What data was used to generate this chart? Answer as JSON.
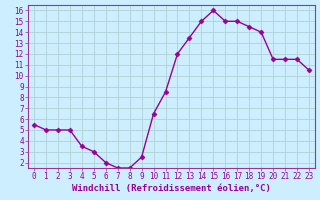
{
  "x": [
    0,
    1,
    2,
    3,
    4,
    5,
    6,
    7,
    8,
    9,
    10,
    11,
    12,
    13,
    14,
    15,
    16,
    17,
    18,
    19,
    20,
    21,
    22,
    23
  ],
  "y": [
    5.5,
    5.0,
    5.0,
    5.0,
    3.5,
    3.0,
    2.0,
    1.5,
    1.5,
    2.5,
    6.5,
    8.5,
    12.0,
    13.5,
    15.0,
    16.0,
    15.0,
    15.0,
    14.5,
    14.0,
    11.5,
    11.5,
    11.5,
    10.5
  ],
  "line_color": "#990099",
  "marker": "D",
  "markersize": 2.5,
  "linewidth": 1.0,
  "bg_color": "#cceeff",
  "grid_color": "#aacccc",
  "xlabel": "Windchill (Refroidissement éolien,°C)",
  "xlabel_color": "#990099",
  "xlabel_fontsize": 6.5,
  "tick_color": "#990099",
  "tick_fontsize": 5.5,
  "xlim": [
    -0.5,
    23.5
  ],
  "ylim": [
    1.5,
    16.5
  ],
  "yticks": [
    2,
    3,
    4,
    5,
    6,
    7,
    8,
    9,
    10,
    11,
    12,
    13,
    14,
    15,
    16
  ],
  "xticks": [
    0,
    1,
    2,
    3,
    4,
    5,
    6,
    7,
    8,
    9,
    10,
    11,
    12,
    13,
    14,
    15,
    16,
    17,
    18,
    19,
    20,
    21,
    22,
    23
  ],
  "spine_color": "#993399"
}
